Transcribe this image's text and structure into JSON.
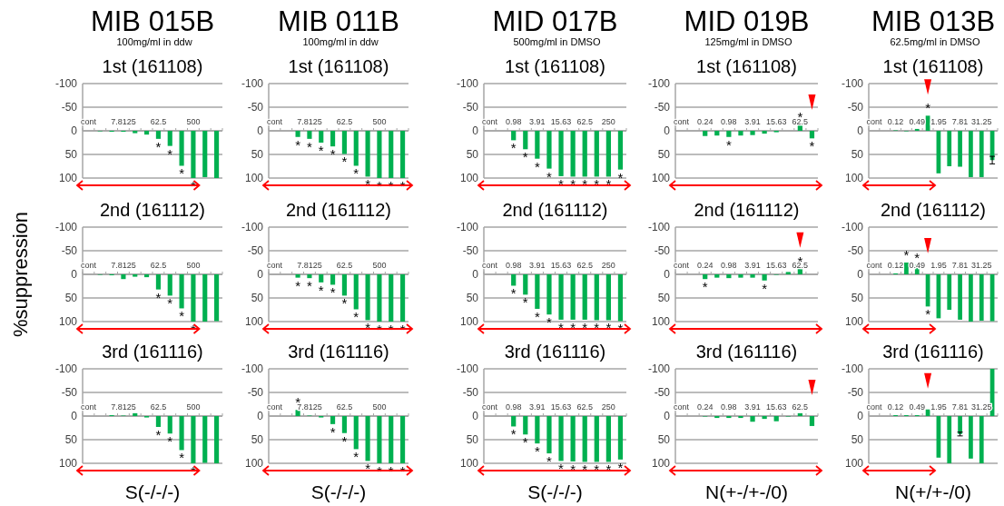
{
  "chart_data": [
    {
      "type": "bar",
      "title": "1st (161108)",
      "annotations": [
        "MIB 015B",
        "100mg/ml in ddw"
      ],
      "categories": [
        "cont",
        null,
        null,
        "7.8125",
        null,
        null,
        "62.5",
        null,
        null,
        "500",
        null,
        null
      ],
      "values": [
        0,
        1,
        2,
        2,
        5,
        8,
        17,
        32,
        74,
        100,
        98,
        100
      ],
      "value_labels": [
        null,
        null,
        null,
        null,
        null,
        null,
        "*",
        "*",
        "*",
        "*",
        null,
        null
      ],
      "color": "#00b050",
      "ylim": [
        100,
        -100
      ],
      "yticks": [
        -100,
        -50,
        0,
        50,
        100
      ],
      "grid": "y"
    },
    {
      "type": "bar",
      "title": "1st (161108)",
      "annotations": [
        "MIB 011B",
        "100mg/ml in ddw"
      ],
      "categories": [
        "cont",
        null,
        null,
        "7.8125",
        null,
        null,
        "62.5",
        null,
        null,
        "500",
        null,
        null
      ],
      "values": [
        0,
        0,
        13,
        17,
        25,
        33,
        49,
        74,
        97,
        100,
        100,
        100
      ],
      "value_labels": [
        null,
        null,
        "*",
        "*",
        "*",
        "*",
        "*",
        "*",
        "*",
        "*",
        "*",
        "*"
      ],
      "color": "#00b050",
      "ylim": [
        100,
        -100
      ],
      "yticks": [
        -100,
        -50,
        0,
        50,
        100
      ],
      "grid": "y"
    },
    {
      "type": "bar",
      "title": "1st (161108)",
      "annotations": [
        "MID 017B",
        "500mg/ml in DMSO"
      ],
      "categories": [
        "cont",
        null,
        "0.98",
        null,
        "3.91",
        null,
        "15.63",
        null,
        "62.5",
        null,
        "250",
        null
      ],
      "values": [
        0,
        0,
        20,
        39,
        59,
        80,
        96,
        97,
        97,
        97,
        97,
        82
      ],
      "value_labels": [
        null,
        null,
        "*",
        "*",
        "*",
        "*",
        "*",
        "*",
        "*",
        "*",
        "*",
        "*"
      ],
      "color": "#00b050",
      "ylim": [
        100,
        -100
      ],
      "yticks": [
        -100,
        -50,
        0,
        50,
        100
      ],
      "grid": "y"
    },
    {
      "type": "bar",
      "title": "1st (161108)",
      "annotations": [
        "MID 019B",
        "125mg/ml in DMSO"
      ],
      "categories": [
        "cont",
        null,
        "0.24",
        null,
        "0.98",
        null,
        "3.91",
        null,
        "15.63",
        null,
        "62.5",
        null
      ],
      "values": [
        0,
        0,
        11,
        10,
        13,
        10,
        9,
        6,
        3,
        0,
        -14,
        16
      ],
      "value_labels": [
        null,
        null,
        null,
        null,
        "*",
        null,
        null,
        null,
        null,
        null,
        "*",
        "*"
      ],
      "color": "#00b050",
      "ylim": [
        100,
        -100
      ],
      "yticks": [
        -100,
        -50,
        0,
        50,
        100
      ],
      "grid": "y"
    },
    {
      "type": "bar",
      "title": "1st (161108)",
      "annotations": [
        "MIB 013B",
        "62.5mg/ml in DMSO"
      ],
      "categories": [
        "cont",
        null,
        "0.12",
        null,
        "0.49",
        null,
        "1.95",
        null,
        "7.81",
        null,
        "31.25",
        null
      ],
      "values": [
        0,
        0,
        -1,
        1,
        -4,
        -32,
        90,
        75,
        76,
        98,
        98,
        62
      ],
      "errors": [
        null,
        null,
        null,
        null,
        null,
        null,
        null,
        null,
        null,
        null,
        null,
        8
      ],
      "value_labels": [
        null,
        null,
        null,
        null,
        null,
        "*",
        null,
        null,
        null,
        null,
        null,
        null
      ],
      "color": "#00b050",
      "ylim": [
        100,
        -100
      ],
      "yticks": [
        -100,
        -50,
        0,
        50,
        100
      ],
      "grid": "y"
    },
    {
      "type": "bar",
      "title": "2nd (161112)",
      "ylabel": "%suppression",
      "categories": [
        "cont",
        null,
        null,
        "7.8125",
        null,
        null,
        "62.5",
        null,
        null,
        "500",
        null,
        null
      ],
      "values": [
        0,
        1,
        2,
        10,
        5,
        6,
        32,
        45,
        72,
        100,
        100,
        99
      ],
      "value_labels": [
        null,
        null,
        null,
        null,
        null,
        null,
        "*",
        "*",
        "*",
        "*",
        null,
        null
      ],
      "color": "#00b050",
      "ylim": [
        100,
        -100
      ],
      "yticks": [
        -100,
        -50,
        0,
        50,
        100
      ],
      "grid": "y"
    },
    {
      "type": "bar",
      "title": "2nd (161112)",
      "categories": [
        "cont",
        null,
        null,
        "7.8125",
        null,
        null,
        "62.5",
        null,
        null,
        "500",
        null,
        null
      ],
      "values": [
        0,
        0,
        7,
        8,
        17,
        22,
        45,
        74,
        97,
        100,
        100,
        100
      ],
      "value_labels": [
        null,
        null,
        "*",
        "*",
        "*",
        "*",
        "*",
        "*",
        "*",
        "*",
        "*",
        "*"
      ],
      "color": "#00b050",
      "ylim": [
        100,
        -100
      ],
      "yticks": [
        -100,
        -50,
        0,
        50,
        100
      ],
      "grid": "y"
    },
    {
      "type": "bar",
      "title": "2nd (161112)",
      "categories": [
        "cont",
        null,
        "0.98",
        null,
        "3.91",
        null,
        "15.63",
        null,
        "62.5",
        null,
        "250",
        null
      ],
      "values": [
        0,
        0,
        24,
        43,
        73,
        85,
        96,
        96,
        96,
        97,
        97,
        99
      ],
      "value_labels": [
        null,
        null,
        "*",
        "*",
        "*",
        "*",
        "*",
        "*",
        "*",
        "*",
        "*",
        "*"
      ],
      "color": "#00b050",
      "ylim": [
        100,
        -100
      ],
      "yticks": [
        -100,
        -50,
        0,
        50,
        100
      ],
      "grid": "y"
    },
    {
      "type": "bar",
      "title": "2nd (161112)",
      "categories": [
        "cont",
        null,
        "0.24",
        null,
        "0.98",
        null,
        "3.91",
        null,
        "15.63",
        null,
        "62.5",
        null
      ],
      "values": [
        0,
        0,
        10,
        7,
        8,
        7,
        7,
        13,
        1,
        -5,
        -12,
        0
      ],
      "value_labels": [
        null,
        null,
        "*",
        null,
        null,
        null,
        null,
        "*",
        null,
        null,
        "*",
        null
      ],
      "color": "#00b050",
      "ylim": [
        100,
        -100
      ],
      "yticks": [
        -100,
        -50,
        0,
        50,
        100
      ],
      "grid": "y"
    },
    {
      "type": "bar",
      "title": "2nd (161112)",
      "categories": [
        "cont",
        null,
        "0.12",
        null,
        "0.49",
        null,
        "1.95",
        null,
        "7.81",
        null,
        "31.25",
        null
      ],
      "values": [
        0,
        0,
        -2,
        -25,
        -20,
        68,
        93,
        75,
        96,
        100,
        98,
        99
      ],
      "value_labels": [
        null,
        null,
        null,
        "*",
        "*",
        "*",
        null,
        null,
        null,
        null,
        null,
        null
      ],
      "color": "#00b050",
      "ylim": [
        100,
        -100
      ],
      "yticks": [
        -100,
        -50,
        0,
        50,
        100
      ],
      "grid": "y"
    },
    {
      "type": "bar",
      "title": "3rd  (161116)",
      "xlabel": "S(-/-/-)",
      "categories": [
        "cont",
        null,
        null,
        "7.8125",
        null,
        null,
        "62.5",
        null,
        null,
        "500",
        null,
        null
      ],
      "values": [
        0,
        0,
        -2,
        -1,
        -6,
        3,
        23,
        37,
        72,
        100,
        99,
        100
      ],
      "value_labels": [
        null,
        null,
        null,
        null,
        null,
        null,
        "*",
        "*",
        "*",
        "*",
        null,
        null
      ],
      "color": "#00b050",
      "ylim": [
        100,
        -100
      ],
      "yticks": [
        -100,
        -50,
        0,
        50,
        100
      ],
      "grid": "y"
    },
    {
      "type": "bar",
      "title": "3rd  (161116)",
      "xlabel": "S(-/-/-)",
      "categories": [
        "cont",
        null,
        null,
        "7.8125",
        null,
        null,
        "62.5",
        null,
        null,
        "500",
        null,
        null
      ],
      "values": [
        0,
        0,
        -13,
        -1,
        3,
        17,
        36,
        70,
        95,
        100,
        100,
        100
      ],
      "value_labels": [
        null,
        null,
        "*",
        null,
        null,
        "*",
        "*",
        "*",
        "*",
        "*",
        "*",
        "*"
      ],
      "color": "#00b050",
      "ylim": [
        100,
        -100
      ],
      "yticks": [
        -100,
        -50,
        0,
        50,
        100
      ],
      "grid": "y"
    },
    {
      "type": "bar",
      "title": "3rd  (161116)",
      "xlabel": "S(-/-/-)",
      "categories": [
        "cont",
        null,
        "0.98",
        null,
        "3.91",
        null,
        "15.63",
        null,
        "62.5",
        null,
        "250",
        null
      ],
      "values": [
        0,
        0,
        22,
        39,
        58,
        79,
        95,
        96,
        97,
        97,
        97,
        92
      ],
      "value_labels": [
        null,
        null,
        "*",
        "*",
        "*",
        "*",
        "*",
        "*",
        "*",
        "*",
        "*",
        "*"
      ],
      "color": "#00b050",
      "ylim": [
        100,
        -100
      ],
      "yticks": [
        -100,
        -50,
        0,
        50,
        100
      ],
      "grid": "y"
    },
    {
      "type": "bar",
      "title": "3rd  (161116)",
      "xlabel": "N(+-/+-/0)",
      "categories": [
        "cont",
        null,
        "0.24",
        null,
        "0.98",
        null,
        "3.91",
        null,
        "15.63",
        null,
        "62.5",
        null
      ],
      "values": [
        0,
        0,
        1,
        4,
        4,
        4,
        12,
        6,
        11,
        1,
        -6,
        21
      ],
      "color": "#00b050",
      "ylim": [
        100,
        -100
      ],
      "yticks": [
        -100,
        -50,
        0,
        50,
        100
      ],
      "grid": "y"
    },
    {
      "type": "bar",
      "title": "3rd  (161116)",
      "xlabel": "N(+/+-/0)",
      "categories": [
        "cont",
        null,
        "0.12",
        null,
        "0.49",
        null,
        "1.95",
        null,
        "7.81",
        null,
        "31.25",
        null
      ],
      "values": [
        0,
        0,
        -2,
        -2,
        -2,
        -14,
        88,
        100,
        38,
        90,
        100,
        -100
      ],
      "errors": [
        null,
        null,
        null,
        null,
        null,
        null,
        null,
        null,
        4,
        null,
        null,
        null
      ],
      "color": "#00b050",
      "ylim": [
        100,
        -100
      ],
      "yticks": [
        -100,
        -50,
        0,
        50,
        100
      ],
      "grid": "y"
    }
  ]
}
